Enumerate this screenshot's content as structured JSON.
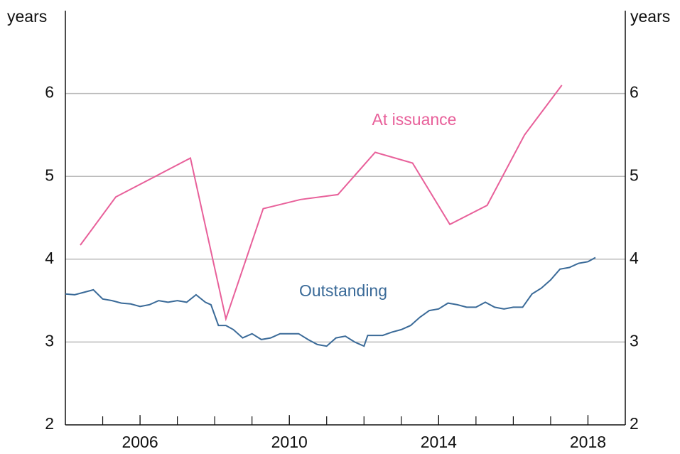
{
  "chart_data": {
    "type": "line",
    "y_label": "years",
    "y2_label": "years",
    "xlim": [
      2004,
      2019
    ],
    "xticks": [
      2006,
      2010,
      2014,
      2018
    ],
    "xminorticks": [
      2005,
      2006,
      2007,
      2008,
      2009,
      2010,
      2011,
      2012,
      2013,
      2014,
      2015,
      2016,
      2017,
      2018
    ],
    "ylim": [
      2,
      7
    ],
    "yticks": [
      2,
      3,
      4,
      5,
      6
    ],
    "y2lim": [
      2,
      7
    ],
    "y2ticks": [
      2,
      3,
      4,
      5,
      6
    ],
    "grid": true,
    "series": [
      {
        "name": "At issuance",
        "color": "#e8609a",
        "x": [
          2004.4,
          2005.35,
          2007.35,
          2008.3,
          2009.3,
          2010.3,
          2011.3,
          2012.3,
          2013.3,
          2014.3,
          2015.3,
          2016.3,
          2017.3
        ],
        "values": [
          4.17,
          4.75,
          5.22,
          3.28,
          4.61,
          4.72,
          4.78,
          5.29,
          5.16,
          4.42,
          4.65,
          5.5,
          6.1
        ]
      },
      {
        "name": "Outstanding",
        "color": "#3a6a98",
        "x": [
          2004.0,
          2004.25,
          2004.5,
          2004.75,
          2005.0,
          2005.25,
          2005.5,
          2005.75,
          2006.0,
          2006.25,
          2006.5,
          2006.75,
          2007.0,
          2007.25,
          2007.5,
          2007.75,
          2007.9,
          2008.1,
          2008.3,
          2008.5,
          2008.75,
          2009.0,
          2009.25,
          2009.5,
          2009.75,
          2010.0,
          2010.25,
          2010.5,
          2010.75,
          2011.0,
          2011.25,
          2011.5,
          2011.75,
          2012.0,
          2012.1,
          2012.5,
          2012.75,
          2013.0,
          2013.25,
          2013.5,
          2013.75,
          2014.0,
          2014.25,
          2014.5,
          2014.75,
          2015.0,
          2015.25,
          2015.5,
          2015.75,
          2016.0,
          2016.25,
          2016.5,
          2016.75,
          2017.0,
          2017.25,
          2017.5,
          2017.75,
          2018.0,
          2018.2
        ],
        "values": [
          3.58,
          3.57,
          3.6,
          3.63,
          3.52,
          3.5,
          3.47,
          3.46,
          3.43,
          3.45,
          3.5,
          3.48,
          3.5,
          3.48,
          3.57,
          3.48,
          3.45,
          3.2,
          3.2,
          3.15,
          3.05,
          3.1,
          3.03,
          3.05,
          3.1,
          3.1,
          3.1,
          3.03,
          2.97,
          2.95,
          3.05,
          3.07,
          3.0,
          2.95,
          3.08,
          3.08,
          3.12,
          3.15,
          3.2,
          3.3,
          3.38,
          3.4,
          3.47,
          3.45,
          3.42,
          3.42,
          3.48,
          3.42,
          3.4,
          3.42,
          3.42,
          3.58,
          3.65,
          3.75,
          3.88,
          3.9,
          3.95,
          3.97,
          4.02
        ]
      }
    ]
  }
}
